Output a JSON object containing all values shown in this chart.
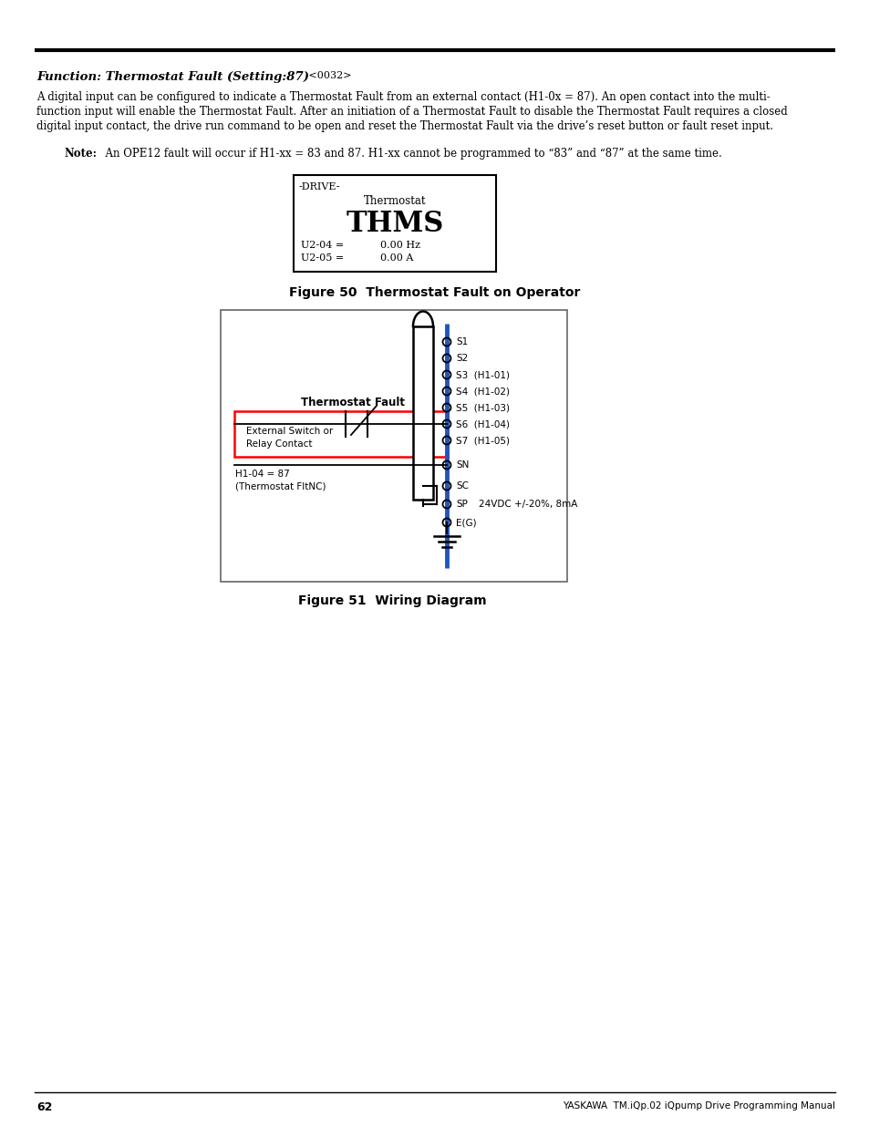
{
  "bg_color": "#ffffff",
  "page_number": "62",
  "footer_right": "YASKAWA  TM.iQp.02 iQpump Drive Programming Manual",
  "title_bold_italic": "Function: Thermostat Fault (Setting:87)",
  "title_small": " <0032>",
  "body_line1": "A digital input can be configured to indicate a Thermostat Fault from an external contact (H1-0x = 87). An open contact into the multi-",
  "body_line2": "function input will enable the Thermostat Fault. After an initiation of a Thermostat Fault to disable the Thermostat Fault requires a closed",
  "body_line3": "digital input contact, the drive run command to be open and reset the Thermostat Fault via the drive’s reset button or fault reset input.",
  "note_bold": "Note:",
  "note_text": "  An OPE12 fault will occur if H1-xx = 83 and 87. H1-xx cannot be programmed to “83” and “87” at the same time.",
  "fig50_caption": "Figure 50  Thermostat Fault on Operator",
  "fig51_caption": "Figure 51  Wiring Diagram",
  "drive_label": "-DRIVE-",
  "thermostat_label": "Thermostat",
  "thms_label": "THMS",
  "u204": "U2-04 =",
  "u204val": "0.00 Hz",
  "u205": "U2-05 =",
  "u205val": "0.00 A",
  "thermostat_fault_label": "Thermostat Fault",
  "ext_switch_line1": "External Switch or",
  "ext_switch_line2": "Relay Contact",
  "h104_line1": "H1-04 = 87",
  "h104_line2": "(Thermostat FltNC)",
  "sp_label": "24VDC +/-20%, 8mA",
  "terminals": [
    "S1",
    "S2",
    "S3  (H1-01)",
    "S4  (H1-02)",
    "S5  (H1-03)",
    "S6  (H1-04)",
    "S7  (H1-05)",
    "SN",
    "SC",
    "SP",
    "E(G)"
  ]
}
